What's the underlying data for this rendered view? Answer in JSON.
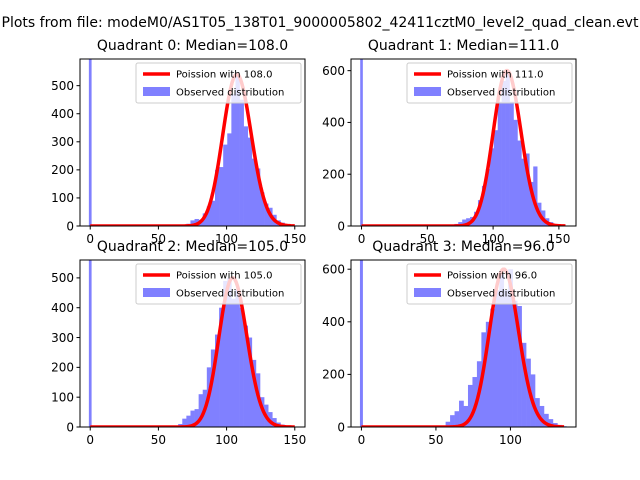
{
  "figure": {
    "suptitle": "Plots from file: modeM0/AS1T05_138T01_9000005802_42411cztM0_level2_quad_clean.evt"
  },
  "colors": {
    "histogram": "#8080ff",
    "poisson": "#ff0000",
    "axes": "#000000"
  },
  "chart_data": [
    {
      "type": "bar",
      "title": "Quadrant 0: Median=108.0",
      "median": 108.0,
      "xlim": [
        -7.5,
        157.5
      ],
      "ylim": [
        0,
        595
      ],
      "xticks": [
        0,
        50,
        100,
        150
      ],
      "yticks": [
        0,
        100,
        200,
        300,
        400,
        500
      ],
      "bin_width": 3,
      "zero_bin_value": 600,
      "hist_x": [
        63,
        66,
        69,
        72,
        75,
        78,
        81,
        84,
        87,
        90,
        93,
        96,
        99,
        102,
        105,
        108,
        111,
        114,
        117,
        120,
        123,
        126,
        129,
        132,
        135,
        138,
        141,
        144,
        147,
        150
      ],
      "hist_y": [
        2,
        3,
        5,
        8,
        20,
        25,
        22,
        45,
        70,
        90,
        200,
        210,
        290,
        330,
        470,
        540,
        450,
        355,
        315,
        240,
        205,
        120,
        80,
        65,
        40,
        20,
        12,
        7,
        4,
        2
      ],
      "poisson_x": [
        0,
        150
      ],
      "legend": [
        "Poission with 108.0",
        "Observed distribution"
      ]
    },
    {
      "type": "bar",
      "title": "Quadrant 1: Median=111.0",
      "median": 111.0,
      "xlim": [
        -8,
        163
      ],
      "ylim": [
        0,
        645
      ],
      "xticks": [
        0,
        50,
        100,
        150
      ],
      "yticks": [
        0,
        200,
        400,
        600
      ],
      "bin_width": 3,
      "zero_bin_value": 650,
      "hist_x": [
        66,
        69,
        72,
        75,
        78,
        81,
        84,
        87,
        90,
        93,
        96,
        99,
        102,
        105,
        108,
        111,
        114,
        117,
        120,
        123,
        126,
        129,
        132,
        135,
        138,
        141,
        144,
        147,
        150,
        153
      ],
      "hist_y": [
        2,
        3,
        8,
        15,
        25,
        30,
        35,
        55,
        100,
        155,
        220,
        300,
        370,
        480,
        560,
        600,
        480,
        410,
        330,
        260,
        280,
        170,
        230,
        90,
        60,
        30,
        15,
        8,
        4,
        2
      ],
      "poisson_x": [
        0,
        155
      ],
      "legend": [
        "Poission with 111.0",
        "Observed distribution"
      ]
    },
    {
      "type": "bar",
      "title": "Quadrant 2: Median=105.0",
      "median": 105.0,
      "xlim": [
        -7.5,
        157.5
      ],
      "ylim": [
        0,
        560
      ],
      "xticks": [
        0,
        50,
        100,
        150
      ],
      "yticks": [
        0,
        100,
        200,
        300,
        400,
        500
      ],
      "bin_width": 3,
      "zero_bin_value": 570,
      "hist_x": [
        63,
        66,
        69,
        72,
        75,
        78,
        81,
        84,
        87,
        90,
        93,
        96,
        99,
        102,
        105,
        108,
        111,
        114,
        117,
        120,
        123,
        126,
        129,
        132,
        135,
        138,
        141,
        144,
        147
      ],
      "hist_y": [
        3,
        10,
        28,
        38,
        55,
        60,
        110,
        125,
        200,
        260,
        310,
        400,
        490,
        500,
        430,
        460,
        400,
        340,
        300,
        225,
        180,
        100,
        75,
        50,
        30,
        15,
        8,
        4,
        2
      ],
      "poisson_x": [
        0,
        150
      ],
      "legend": [
        "Poission with 105.0",
        "Observed distribution"
      ]
    },
    {
      "type": "bar",
      "title": "Quadrant 3: Median=96.0",
      "median": 96.0,
      "xlim": [
        -7,
        144
      ],
      "ylim": [
        0,
        635
      ],
      "xticks": [
        0,
        50,
        100
      ],
      "yticks": [
        0,
        200,
        400,
        600
      ],
      "bin_width": 3,
      "zero_bin_value": 640,
      "hist_x": [
        52,
        55,
        58,
        61,
        64,
        67,
        70,
        73,
        76,
        79,
        82,
        85,
        88,
        91,
        94,
        97,
        100,
        103,
        106,
        109,
        112,
        115,
        118,
        121,
        124,
        127,
        130,
        133,
        136
      ],
      "hist_y": [
        2,
        5,
        20,
        45,
        60,
        100,
        80,
        160,
        190,
        250,
        360,
        400,
        450,
        520,
        580,
        520,
        600,
        480,
        460,
        320,
        260,
        200,
        110,
        80,
        50,
        30,
        15,
        8,
        3
      ],
      "poisson_x": [
        0,
        136
      ],
      "legend": [
        "Poission with 96.0",
        "Observed distribution"
      ]
    }
  ]
}
